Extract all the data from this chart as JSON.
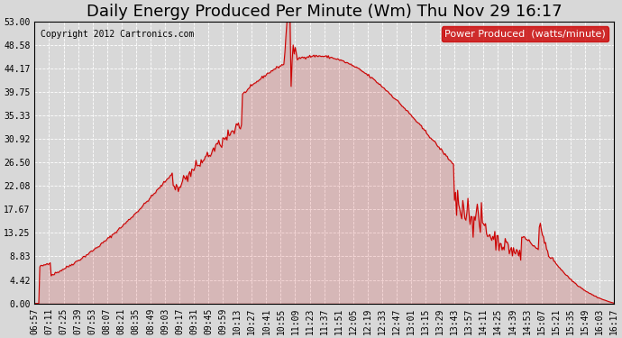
{
  "title": "Daily Energy Produced Per Minute (Wm) Thu Nov 29 16:17",
  "copyright": "Copyright 2012 Cartronics.com",
  "legend_text": "Power Produced  (watts/minute)",
  "line_color": "#cc0000",
  "legend_bg": "#cc0000",
  "legend_fg": "#ffffff",
  "background_color": "#d8d8d8",
  "plot_bg": "#d8d8d8",
  "grid_color": "#ffffff",
  "ylim": [
    0,
    53.0
  ],
  "yticks": [
    0.0,
    4.42,
    8.83,
    13.25,
    17.67,
    22.08,
    26.5,
    30.92,
    35.33,
    39.75,
    44.17,
    48.58,
    53.0
  ],
  "ytick_labels": [
    "0.00",
    "4.42",
    "8.83",
    "13.25",
    "17.67",
    "22.08",
    "26.50",
    "30.92",
    "35.33",
    "39.75",
    "44.17",
    "48.58",
    "53.00"
  ],
  "xtick_labels": [
    "06:57",
    "07:11",
    "07:25",
    "07:39",
    "07:53",
    "08:07",
    "08:21",
    "08:35",
    "08:49",
    "09:03",
    "09:17",
    "09:31",
    "09:45",
    "09:59",
    "10:13",
    "10:27",
    "10:41",
    "10:55",
    "11:09",
    "11:23",
    "11:37",
    "11:51",
    "12:05",
    "12:19",
    "12:33",
    "12:47",
    "13:01",
    "13:15",
    "13:29",
    "13:43",
    "13:57",
    "14:11",
    "14:25",
    "14:39",
    "14:53",
    "15:07",
    "15:21",
    "15:35",
    "15:49",
    "16:03",
    "16:17"
  ],
  "title_fontsize": 13,
  "tick_fontsize": 7,
  "copyright_fontsize": 7,
  "legend_fontsize": 8
}
